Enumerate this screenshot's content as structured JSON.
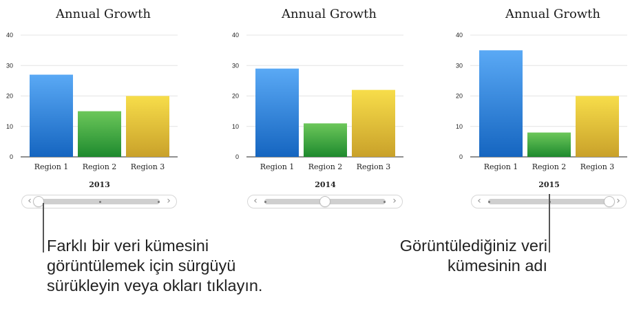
{
  "chart_data": [
    {
      "type": "bar",
      "title": "Annual Growth",
      "categories": [
        "Region 1",
        "Region 2",
        "Region 3"
      ],
      "values": [
        27,
        15,
        20
      ],
      "data_set_name": "2013",
      "ylim": [
        0,
        40
      ],
      "yticks": [
        0,
        10,
        20,
        30,
        40
      ],
      "grid": true,
      "slider_position": 0.0
    },
    {
      "type": "bar",
      "title": "Annual Growth",
      "categories": [
        "Region 1",
        "Region 2",
        "Region 3"
      ],
      "values": [
        29,
        11,
        22
      ],
      "data_set_name": "2014",
      "ylim": [
        0,
        40
      ],
      "yticks": [
        0,
        10,
        20,
        30,
        40
      ],
      "grid": true,
      "slider_position": 0.5
    },
    {
      "type": "bar",
      "title": "Annual Growth",
      "categories": [
        "Region 1",
        "Region 2",
        "Region 3"
      ],
      "values": [
        35,
        8,
        20
      ],
      "data_set_name": "2015",
      "ylim": [
        0,
        40
      ],
      "yticks": [
        0,
        10,
        20,
        30,
        40
      ],
      "grid": true,
      "slider_position": 1.0
    }
  ],
  "colors": {
    "region1": [
      "#5aa9f5",
      "#1565c0"
    ],
    "region2": [
      "#6cc75a",
      "#1e8a2e"
    ],
    "region3": [
      "#f7dd4a",
      "#c9a12a"
    ]
  },
  "slider": {
    "left_arrow": "‹",
    "right_arrow": "›"
  },
  "callouts": {
    "left": "Farklı bir veri kümesini görüntülemek için sürgüyü sürükleyin veya okları tıklayın.",
    "right": "Görüntülediğiniz veri kümesinin adı"
  }
}
